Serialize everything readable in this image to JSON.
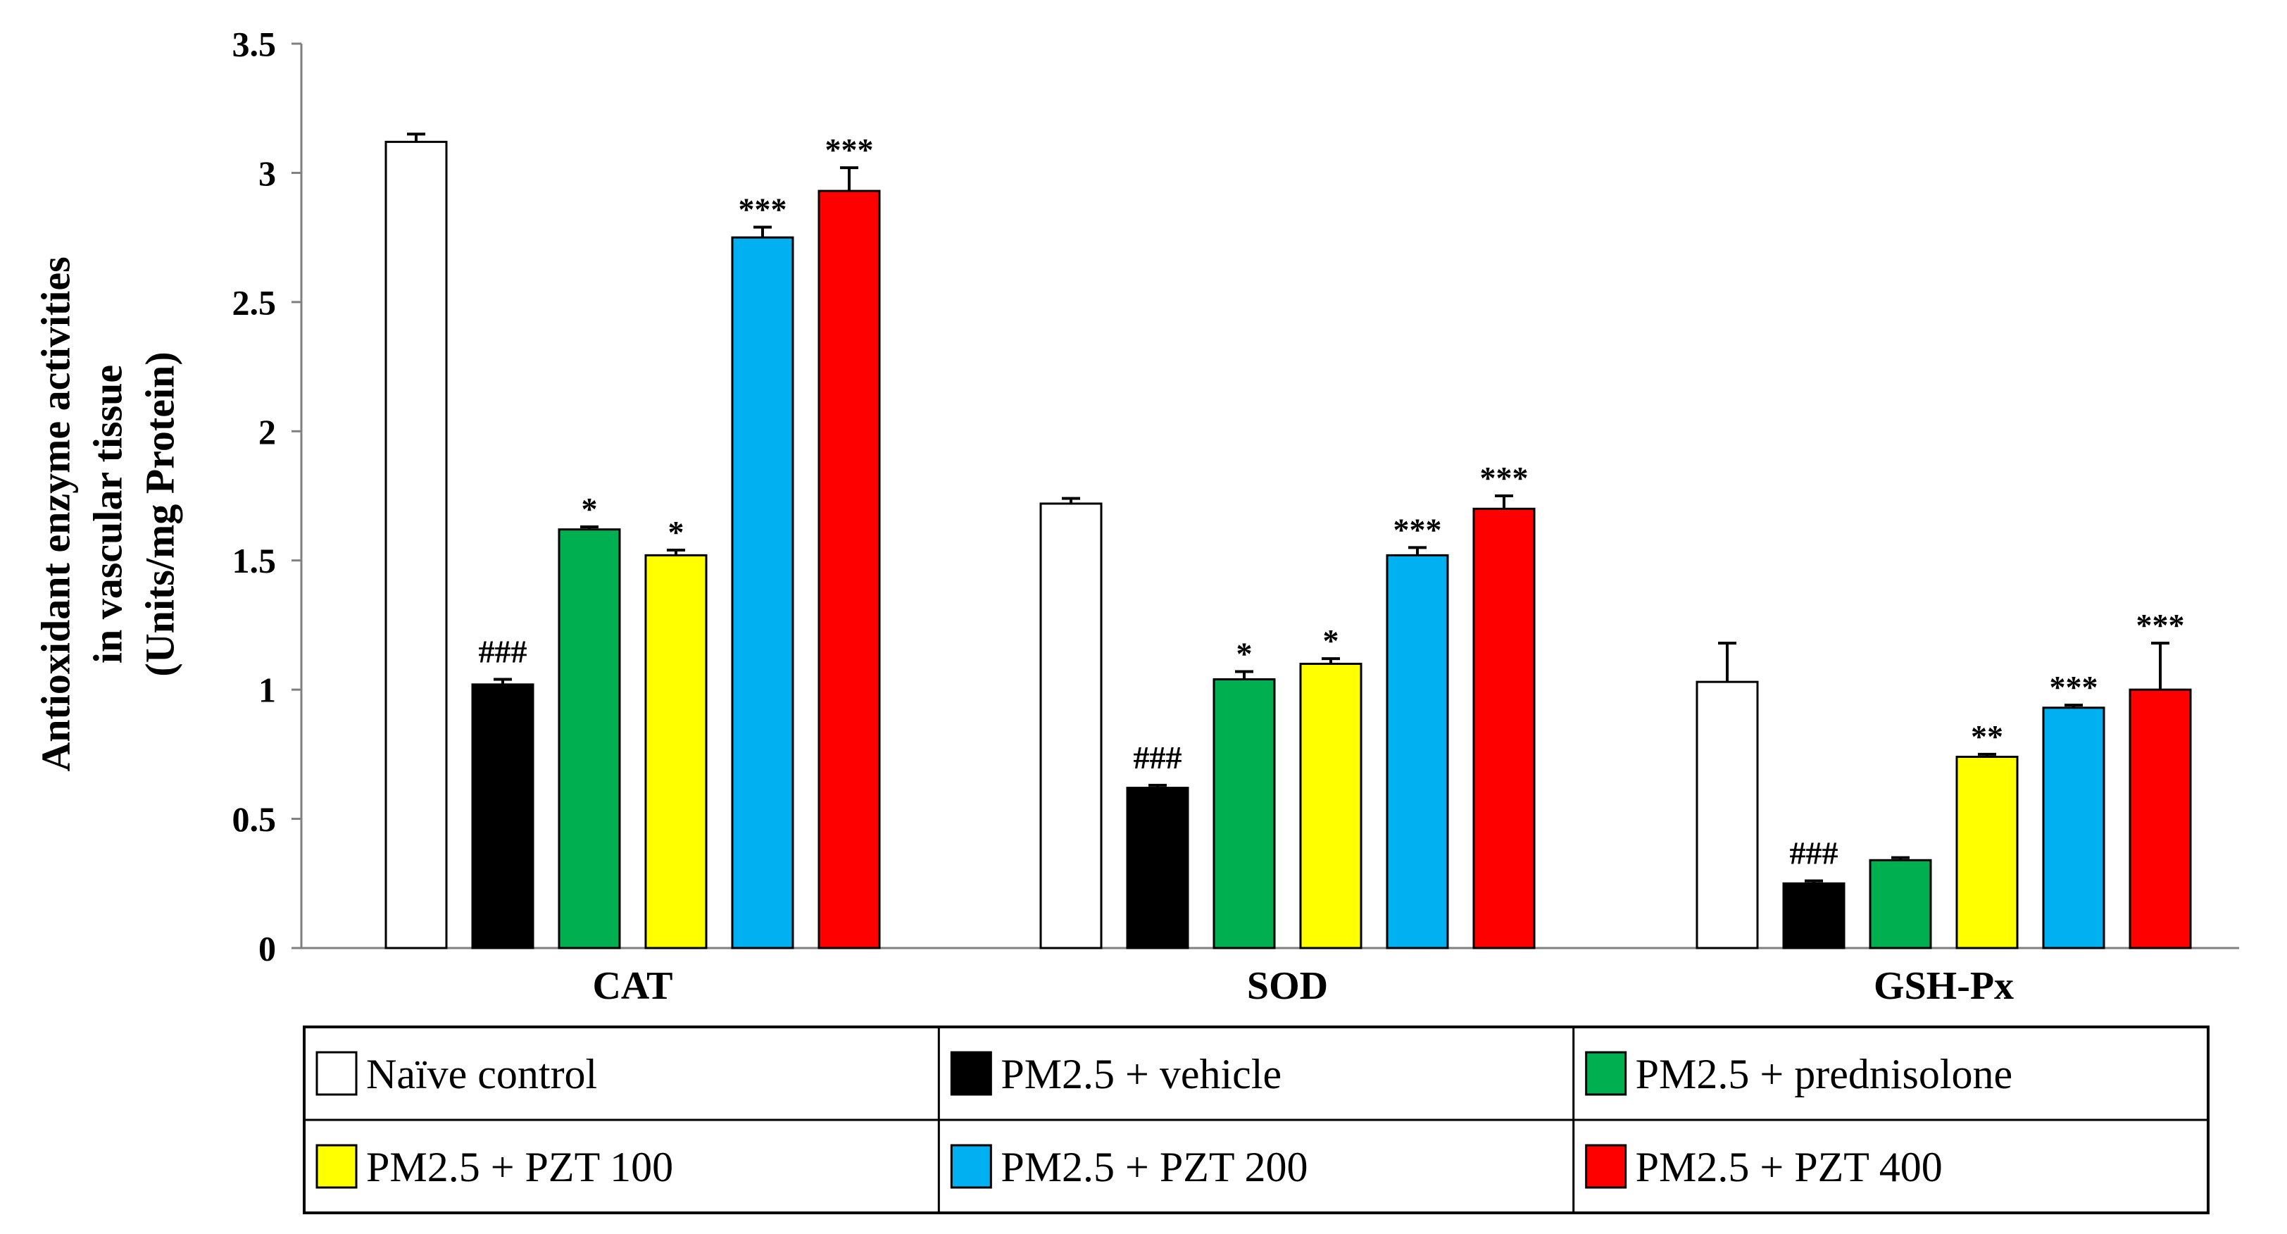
{
  "chart_data": {
    "type": "bar",
    "title": "",
    "ylabel_lines": [
      "Antioxidant enzyme activities",
      "in vascular tissue",
      "(Units/mg Protein)"
    ],
    "xlabel": "",
    "ylim": [
      0,
      3.5
    ],
    "yticks": [
      "0",
      "0.5",
      "1",
      "1.5",
      "2",
      "2.5",
      "3",
      "3.5"
    ],
    "categories": [
      "CAT",
      "SOD",
      "GSH-Px"
    ],
    "series": [
      {
        "name": "Naïve control",
        "color": "#ffffff",
        "values": [
          3.12,
          1.72,
          1.03
        ],
        "errors": [
          0.03,
          0.02,
          0.15
        ],
        "sig": [
          "",
          "",
          ""
        ]
      },
      {
        "name": "PM2.5 + vehicle",
        "color": "#000000",
        "values": [
          1.02,
          0.62,
          0.25
        ],
        "errors": [
          0.02,
          0.01,
          0.01
        ],
        "sig": [
          "###",
          "###",
          "###"
        ]
      },
      {
        "name": "PM2.5 + prednisolone",
        "color": "#00b050",
        "values": [
          1.62,
          1.04,
          0.34
        ],
        "errors": [
          0.01,
          0.03,
          0.01
        ],
        "sig": [
          "*",
          "*",
          ""
        ]
      },
      {
        "name": "PM2.5 + PZT 100",
        "color": "#ffff00",
        "values": [
          1.52,
          1.1,
          0.74
        ],
        "errors": [
          0.02,
          0.02,
          0.01
        ],
        "sig": [
          "*",
          "*",
          "**"
        ]
      },
      {
        "name": "PM2.5 + PZT 200",
        "color": "#00b0f0",
        "values": [
          2.75,
          1.52,
          0.93
        ],
        "errors": [
          0.04,
          0.03,
          0.01
        ],
        "sig": [
          "***",
          "***",
          "***"
        ]
      },
      {
        "name": "PM2.5 + PZT 400",
        "color": "#ff0000",
        "values": [
          2.93,
          1.7,
          1.0
        ],
        "errors": [
          0.09,
          0.05,
          0.18
        ],
        "sig": [
          "***",
          "***",
          "***"
        ]
      }
    ],
    "legend_position": "bottom"
  }
}
